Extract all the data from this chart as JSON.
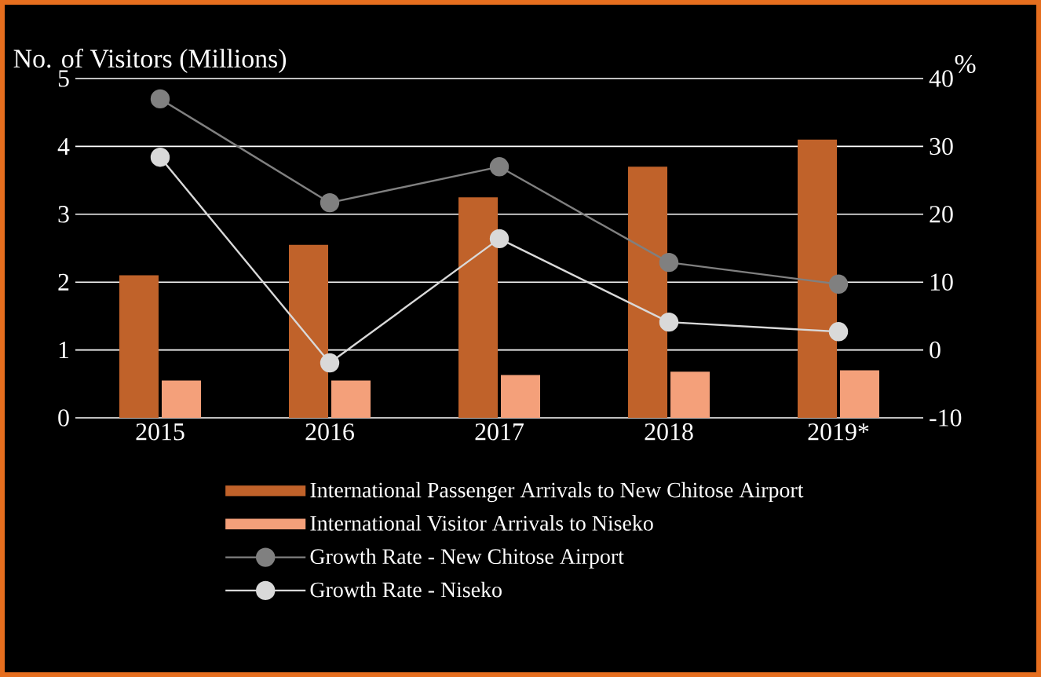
{
  "chart_data": {
    "type": "bar",
    "ylabel": "No. of Visitors (Millions)",
    "y2label": "%",
    "categories": [
      "2015",
      "2016",
      "2017",
      "2018",
      "2019*"
    ],
    "series": [
      {
        "name": "International Passenger Arrivals to New Chitose Airport",
        "color": "#c0622a",
        "values": [
          2.1,
          2.55,
          3.25,
          3.7,
          4.1
        ]
      },
      {
        "name": "International Visitor Arrivals to Niseko",
        "color": "#f4a07a",
        "values": [
          0.55,
          0.55,
          0.63,
          0.68,
          0.7
        ]
      },
      {
        "name": "Growth Rate - New Chitose Airport",
        "type": "line",
        "axis": "y2",
        "color": "#808080",
        "values": [
          37,
          21.7,
          27,
          12.9,
          9.7
        ]
      },
      {
        "name": "Growth Rate - Niseko",
        "type": "line",
        "axis": "y2",
        "color": "#d9d9d9",
        "values": [
          28.4,
          -1.9,
          16.4,
          4.1,
          2.7
        ]
      }
    ],
    "ylim": [
      0,
      5
    ],
    "yticks": [
      0,
      1,
      2,
      3,
      4,
      5
    ],
    "y2lim": [
      -10,
      40
    ],
    "y2ticks": [
      -10,
      0,
      10,
      20,
      30,
      40
    ],
    "grid": "y",
    "legend": "bottom",
    "marker": "circle"
  }
}
